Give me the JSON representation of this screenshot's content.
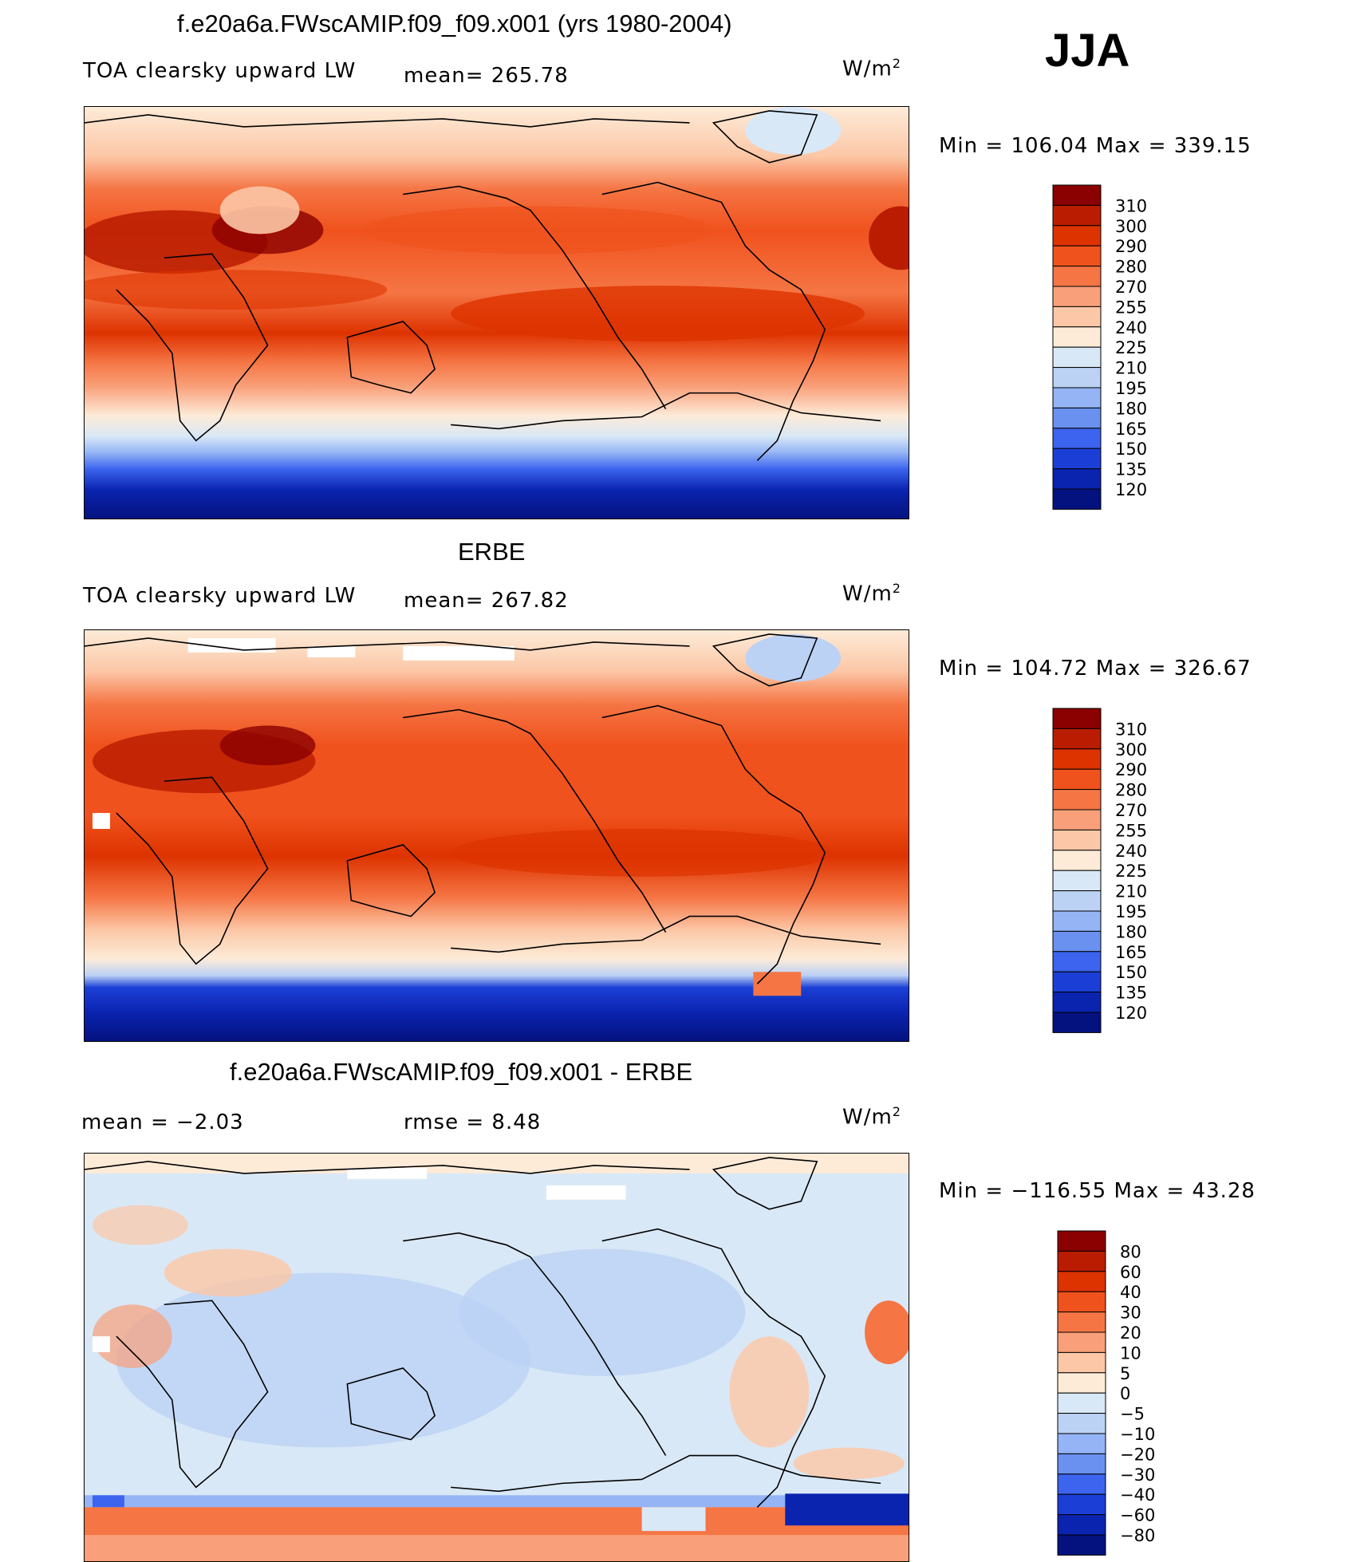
{
  "season": "JJA",
  "units_label": "W/m",
  "units_exp": "2",
  "panels": [
    {
      "title": "f.e20a6a.FWscAMIP.f09_f09.x001 (yrs 1980-2004)",
      "variable": "TOA clearsky upward LW",
      "stat1": "mean= 265.78",
      "stat2": "",
      "minmax": "Min  =  106.04  Max  =  339.15",
      "levels": [
        "310",
        "300",
        "290",
        "280",
        "270",
        "255",
        "240",
        "225",
        "210",
        "195",
        "180",
        "165",
        "150",
        "135",
        "120"
      ],
      "colors": [
        "#8b0000",
        "#b91c00",
        "#dd3300",
        "#f0521d",
        "#f57544",
        "#f9a07a",
        "#fcc7a6",
        "#fdebd8",
        "#d9e8f6",
        "#bcd2f5",
        "#94b4f5",
        "#6a91f0",
        "#3c64ee",
        "#1b3fd6",
        "#0a24b0",
        "#04127f"
      ]
    },
    {
      "title": "ERBE",
      "variable": "TOA clearsky upward LW",
      "stat1": "mean= 267.82",
      "stat2": "",
      "minmax": "Min  =  104.72  Max  =  326.67",
      "levels": [
        "310",
        "300",
        "290",
        "280",
        "270",
        "255",
        "240",
        "225",
        "210",
        "195",
        "180",
        "165",
        "150",
        "135",
        "120"
      ],
      "colors": [
        "#8b0000",
        "#b91c00",
        "#dd3300",
        "#f0521d",
        "#f57544",
        "#f9a07a",
        "#fcc7a6",
        "#fdebd8",
        "#d9e8f6",
        "#bcd2f5",
        "#94b4f5",
        "#6a91f0",
        "#3c64ee",
        "#1b3fd6",
        "#0a24b0",
        "#04127f"
      ]
    },
    {
      "title": "f.e20a6a.FWscAMIP.f09_f09.x001 - ERBE",
      "variable": "",
      "stat1": "mean =    −2.03",
      "stat2": "rmse =     8.48",
      "minmax": "Min  =  −116.55  Max  =    43.28",
      "levels": [
        "80",
        "60",
        "40",
        "30",
        "20",
        "10",
        "5",
        "0",
        "−5",
        "−10",
        "−20",
        "−30",
        "−40",
        "−60",
        "−80"
      ],
      "colors": [
        "#8b0000",
        "#b91c00",
        "#dd3300",
        "#f0521d",
        "#f57544",
        "#f9a07a",
        "#fcc7a6",
        "#fdebd8",
        "#d9e8f6",
        "#bcd2f5",
        "#94b4f5",
        "#6a91f0",
        "#3c64ee",
        "#1b3fd6",
        "#0a24b0",
        "#04127f"
      ]
    }
  ]
}
